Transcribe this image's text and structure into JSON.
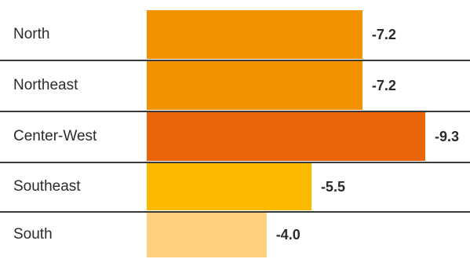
{
  "chart_data": {
    "type": "bar",
    "orientation": "horizontal",
    "categories": [
      "North",
      "Northeast",
      "Center-West",
      "Southeast",
      "South"
    ],
    "values": [
      -7.2,
      -7.2,
      -9.3,
      -5.5,
      -4.0
    ],
    "value_labels": [
      "-7.2",
      "-7.2",
      "-9.3",
      "-5.5",
      "-4.0"
    ],
    "colors": [
      "#F29200",
      "#F29200",
      "#EA6508",
      "#FBB900",
      "#FDD17E"
    ],
    "title": "",
    "xlabel": "",
    "ylabel": "",
    "grid": false,
    "legend": "none"
  }
}
